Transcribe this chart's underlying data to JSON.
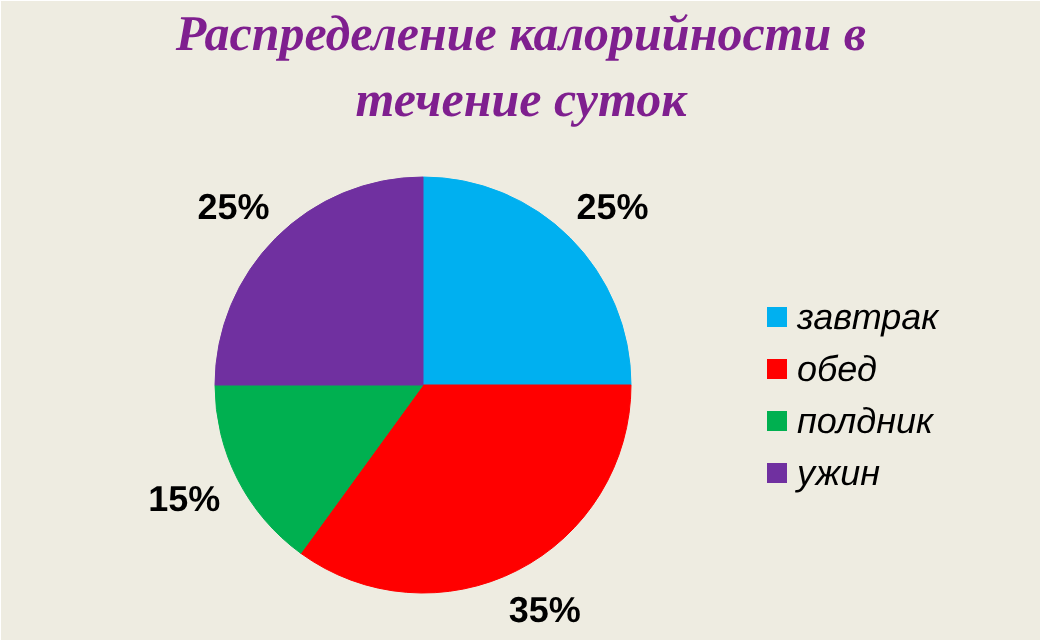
{
  "chart_data": {
    "type": "pie",
    "title": "Распределение калорийности в течение суток",
    "categories": [
      "завтрак",
      "обед",
      "полдник",
      "ужин"
    ],
    "values": [
      25,
      35,
      15,
      25
    ],
    "colors": [
      "#00b0f0",
      "#ff0000",
      "#00b050",
      "#7030a0"
    ],
    "value_labels": [
      "25%",
      "35%",
      "15%",
      "25%"
    ],
    "legend": "right"
  }
}
